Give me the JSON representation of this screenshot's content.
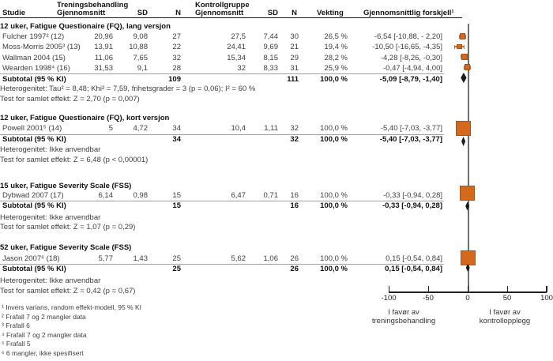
{
  "header": {
    "group_treatment": "Treningsbehandling",
    "group_control": "Kontrollgruppe",
    "col_study": "Studie",
    "col_mean_t": "Gjennomsnitt",
    "col_sd_t": "SD",
    "col_n_t": "N",
    "col_mean_c": "Gjennomsnitt",
    "col_sd_c": "SD",
    "col_n_c": "N",
    "col_weight": "Vekting",
    "col_diff": "Gjennomsnittlig forskjell¹"
  },
  "sections": [
    {
      "title": "12 uker, Fatigue Questionaire (FQ), lang versjon",
      "studies": [
        {
          "name": "Fulcher 1997² (12)",
          "m1": "20,96",
          "sd1": "9,08",
          "n1": "27",
          "m2": "27,5",
          "sd2": "7,44",
          "n2": "30",
          "weight": "26,5 %",
          "diff": "-6,54 [-10,88, - 2,20]"
        },
        {
          "name": "Moss-Morris 2005³ (13)",
          "m1": "13,91",
          "sd1": "10,88",
          "n1": "22",
          "m2": "24,41",
          "sd2": "9,69",
          "n2": "21",
          "weight": "19,4 %",
          "diff": "-10,50 [-16,65, -4,35]"
        },
        {
          "name": "Wallman 2004 (15)",
          "m1": "11,06",
          "sd1": "7,65",
          "n1": "32",
          "m2": "15,34",
          "sd2": "8,15",
          "n2": "29",
          "weight": "28,2 %",
          "diff": "-4,28 [-8,26, -0,30]"
        },
        {
          "name": "Wearden 1998⁴ (16)",
          "m1": "31,53",
          "sd1": "9,1",
          "n1": "28",
          "m2": "32",
          "sd2": "8,33",
          "n2": "31",
          "weight": "25,9 %",
          "diff": "-0,47 [-4,94, 4,00]"
        }
      ],
      "subtotal": {
        "label": "Subtotal (95 % KI)",
        "n1": "109",
        "n2": "111",
        "weight": "100,0 %",
        "diff": "-5,09 [-8,79, -1,40]"
      },
      "het": "Heterogenitet: Tau² = 8,48; Khi² = 7,59, frihetsgrader = 3 (p = 0,06); I² = 60 %",
      "test": "Test for samlet effekt: Z = 2,70 (p = 0,007)"
    },
    {
      "title": "12 uker, Fatigue Questionaire (FQ), kort versjon",
      "studies": [
        {
          "name": "Powell 2001⁵ (14)",
          "m1": "5",
          "sd1": "4,72",
          "n1": "34",
          "m2": "10,4",
          "sd2": "1,11",
          "n2": "32",
          "weight": "100,0 %",
          "diff": "-5,40 [-7,03, -3,77]"
        }
      ],
      "subtotal": {
        "label": "Subtotal (95 % KI)",
        "n1": "34",
        "n2": "32",
        "weight": "100,0 %",
        "diff": "-5,40 [-7,03, -3,77]"
      },
      "het": "Heterogenitet: Ikke anvendbar",
      "test": "Test for samlet effekt: Z = 6,48 (p < 0,00001)"
    },
    {
      "title": "15 uker, Fatigue Severity Scale (FSS)",
      "studies": [
        {
          "name": "Dybwad 2007 (17)",
          "m1": "6,14",
          "sd1": "0,98",
          "n1": "15",
          "m2": "6,47",
          "sd2": "0,71",
          "n2": "16",
          "weight": "100,0 %",
          "diff": "-0,33 [-0,94, 0,28]"
        }
      ],
      "subtotal": {
        "label": "Subtotal (95 % KI)",
        "n1": "15",
        "n2": "16",
        "weight": "100,0 %",
        "diff": "-0,33 [-0,94, 0,28]"
      },
      "het": "Heterogenitet: Ikke anvendbar",
      "test": "Test for samlet effekt: Z = 1,07 (p = 0,29)"
    },
    {
      "title": "52 uker, Fatigue Severity Scale (FSS)",
      "studies": [
        {
          "name": "Jason 2007⁶ (18)",
          "m1": "5,77",
          "sd1": "1,43",
          "n1": "25",
          "m2": "5,62",
          "sd2": "1,06",
          "n2": "26",
          "weight": "100,0 %",
          "diff": "0,15 [-0,54, 0,84]"
        }
      ],
      "subtotal": {
        "label": "Subtotal (95 % KI)",
        "n1": "25",
        "n2": "26",
        "weight": "100,0 %",
        "diff": "0,15 [-0,54, 0,84]"
      },
      "het": "Heterogenitet: Ikke anvendbar",
      "test": "Test for samlet effekt: Z = 0,42 (p = 0,67)"
    }
  ],
  "footnotes": [
    "¹ Invers varians, random effekt-modell, 95 % KI",
    "² Frafall 7 og 2 mangler data",
    "³ Frafall 6",
    "⁴ Frafall 7 og 2 mangler data",
    "⁵ Frafall 5",
    "⁶ 6 mangler, ikke spesifisert"
  ],
  "axis": {
    "ticks": [
      "-100",
      "-50",
      "0",
      "50",
      "100"
    ],
    "caption_left_1": "I favør av",
    "caption_left_2": "treningsbehandling",
    "caption_right_1": "I favør av",
    "caption_right_2": "kontrollopplegg"
  },
  "colors": {
    "marker": "#d2691e",
    "marker_border": "#a8541a",
    "diamond": "#1a1a1a",
    "zero_line": "#6e6e6e"
  },
  "chart_data": {
    "type": "forest",
    "x_range": [
      -100,
      100
    ],
    "x_ticks": [
      -100,
      -50,
      0,
      50,
      100
    ],
    "studies": [
      {
        "label": "Fulcher 1997",
        "est": -6.54,
        "lo": -10.88,
        "hi": -2.2,
        "weight_pct": 26.5
      },
      {
        "label": "Moss-Morris 2005",
        "est": -10.5,
        "lo": -16.65,
        "hi": -4.35,
        "weight_pct": 19.4
      },
      {
        "label": "Wallman 2004",
        "est": -4.28,
        "lo": -8.26,
        "hi": -0.3,
        "weight_pct": 28.2
      },
      {
        "label": "Wearden 1998",
        "est": -0.47,
        "lo": -4.94,
        "hi": 4.0,
        "weight_pct": 25.9
      },
      {
        "label": "Powell 2001",
        "est": -5.4,
        "lo": -7.03,
        "hi": -3.77,
        "weight_pct": 100.0
      },
      {
        "label": "Dybwad 2007",
        "est": -0.33,
        "lo": -0.94,
        "hi": 0.28,
        "weight_pct": 100.0
      },
      {
        "label": "Jason 2007",
        "est": 0.15,
        "lo": -0.54,
        "hi": 0.84,
        "weight_pct": 100.0
      }
    ],
    "subtotals": [
      {
        "label": "12 uker, FQ lang versjon",
        "est": -5.09,
        "lo": -8.79,
        "hi": -1.4
      },
      {
        "label": "12 uker, FQ kort versjon",
        "est": -5.4,
        "lo": -7.03,
        "hi": -3.77
      },
      {
        "label": "15 uker, FSS",
        "est": -0.33,
        "lo": -0.94,
        "hi": 0.28
      },
      {
        "label": "52 uker, FSS",
        "est": 0.15,
        "lo": -0.54,
        "hi": 0.84
      }
    ]
  }
}
